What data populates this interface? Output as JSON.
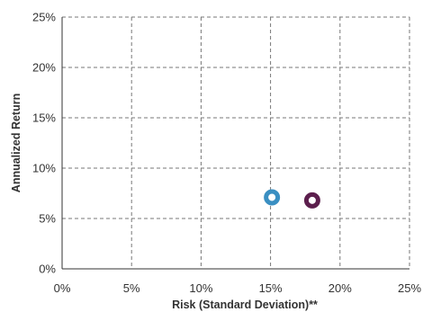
{
  "chart_data": {
    "type": "scatter",
    "title": "",
    "xlabel": "Risk (Standard Deviation)**",
    "ylabel": "Annualized Return",
    "xlim": [
      0,
      25
    ],
    "ylim": [
      0,
      25
    ],
    "x_ticks": [
      0,
      5,
      10,
      15,
      20,
      25
    ],
    "y_ticks": [
      0,
      5,
      10,
      15,
      20,
      25
    ],
    "tick_suffix": "%",
    "grid": true,
    "grid_style": "dashed",
    "legend": "none",
    "series": [
      {
        "x": [
          15.1
        ],
        "y": [
          7.1
        ],
        "color": "#3a8fc2"
      },
      {
        "x": [
          18.0
        ],
        "y": [
          6.8
        ],
        "color": "#5c1f4d"
      }
    ]
  }
}
